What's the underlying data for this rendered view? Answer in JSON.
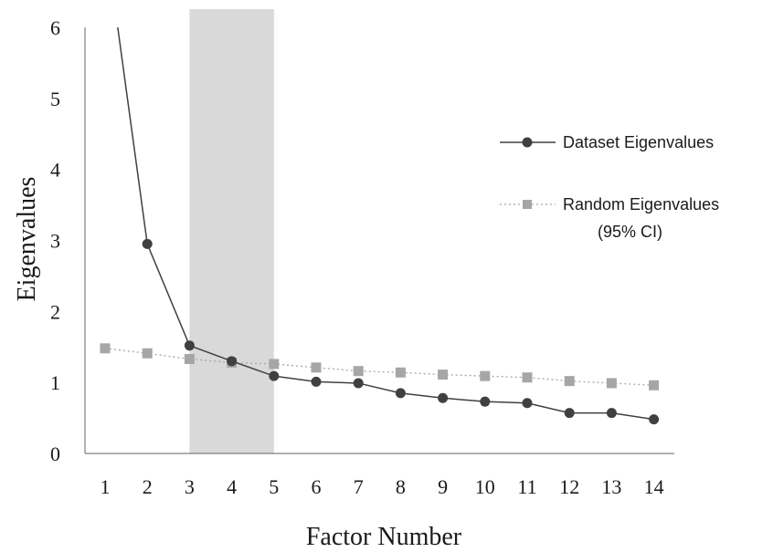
{
  "chart_data": {
    "type": "line",
    "xlabel": "Factor Number",
    "ylabel": "Eigenvalues",
    "x": [
      1,
      2,
      3,
      4,
      5,
      6,
      7,
      8,
      9,
      10,
      11,
      12,
      13,
      14
    ],
    "x_tick_labels": [
      "1",
      "2",
      "3",
      "4",
      "5",
      "6",
      "7",
      "8",
      "9",
      "10",
      "11",
      "12",
      "13",
      "14"
    ],
    "y_tick_labels": [
      "0",
      "1",
      "2",
      "3",
      "4",
      "5",
      "6"
    ],
    "ylim": [
      0,
      6
    ],
    "xlim": [
      0.5,
      14.5
    ],
    "highlight_band": {
      "from": 3,
      "to": 5,
      "color": "#d9d9d9"
    },
    "series": [
      {
        "name": "Dataset Eigenvalues",
        "color": "#404040",
        "marker": "circle",
        "line": "solid",
        "x": [
          1.3,
          2,
          3,
          4,
          5,
          6,
          7,
          8,
          9,
          10,
          11,
          12,
          13,
          14
        ],
        "values": [
          6.0,
          2.95,
          1.52,
          1.3,
          1.09,
          1.01,
          0.99,
          0.85,
          0.78,
          0.73,
          0.71,
          0.57,
          0.57,
          0.48
        ],
        "marker_from_index": 1
      },
      {
        "name_lines": [
          "Random Eigenvalues",
          "(95% CI)"
        ],
        "color": "#a6a6a6",
        "marker": "square",
        "line": "dotted",
        "x": [
          1,
          2,
          3,
          4,
          5,
          6,
          7,
          8,
          9,
          10,
          11,
          12,
          13,
          14
        ],
        "values": [
          1.48,
          1.41,
          1.33,
          1.28,
          1.26,
          1.21,
          1.16,
          1.14,
          1.11,
          1.09,
          1.07,
          1.02,
          0.99,
          0.96
        ]
      }
    ],
    "legend": {
      "position": "right"
    },
    "grid": false
  }
}
